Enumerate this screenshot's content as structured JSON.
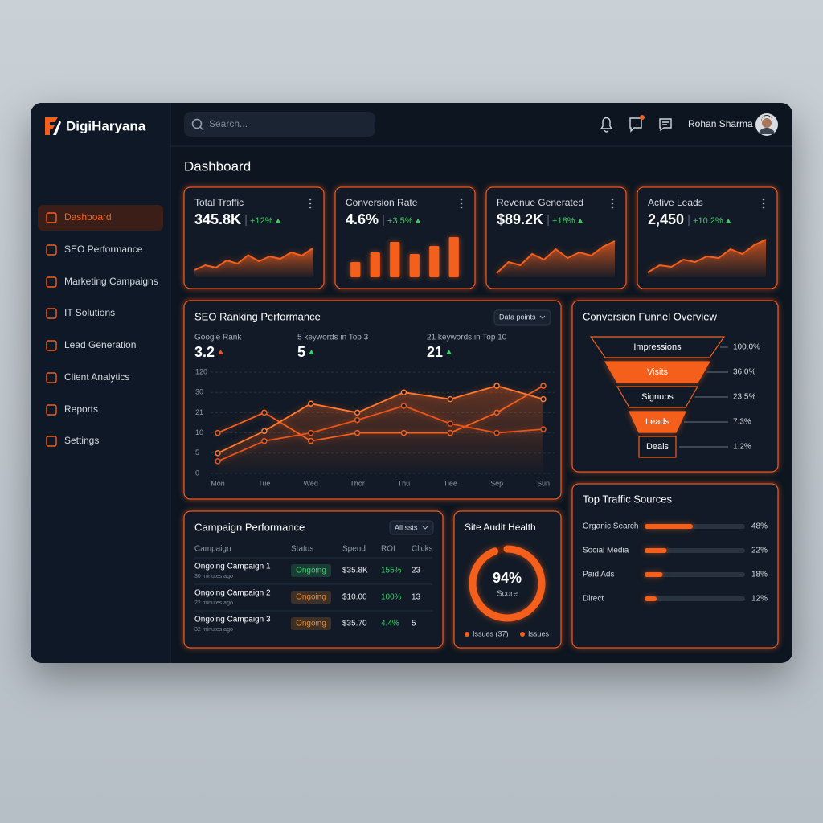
{
  "brand": "DigiHaryana",
  "search_placeholder": "Search...",
  "user": "Rohan Sharma",
  "nav": [
    "Dashboard",
    "SEO Performance",
    "Marketing Campaigns",
    "IT Solutions",
    "Lead Generation",
    "Client Analytics",
    "Reports",
    "Settings"
  ],
  "page_title": "Dashboard",
  "kpis": [
    {
      "label": "Total Traffic",
      "value": "345.8K",
      "change": "+12%",
      "trend_type": "area",
      "trend": [
        18,
        30,
        24,
        42,
        34,
        55,
        40,
        52,
        46,
        62,
        54,
        72
      ]
    },
    {
      "label": "Conversion Rate",
      "value": "4.6%",
      "change": "+3.5%",
      "trend_type": "bar",
      "trend": [
        38,
        62,
        88,
        58,
        78,
        100
      ]
    },
    {
      "label": "Revenue Generated",
      "value": "$89.2K",
      "change": "+18%",
      "trend_type": "area",
      "trend": [
        10,
        38,
        30,
        58,
        44,
        70,
        48,
        62,
        54,
        76,
        90
      ]
    },
    {
      "label": "Active Leads",
      "value": "2,450",
      "change": "+10.2%",
      "trend_type": "area",
      "trend": [
        12,
        30,
        26,
        44,
        38,
        52,
        48,
        70,
        58,
        80,
        94
      ]
    }
  ],
  "seo": {
    "title": "SEO Ranking Performance",
    "button": "Data points",
    "stats": [
      {
        "label": "Google Rank",
        "value": 3.2,
        "arrow_color": "#f0582a"
      },
      {
        "label": "5 keywords in Top 3",
        "value": 5,
        "arrow_color": "#3ecf6e"
      },
      {
        "label": "21 keywords in Top 10",
        "value": 21,
        "arrow_color": "#3ecf6e"
      }
    ],
    "categories": [
      "Mon",
      "Tue",
      "Wed",
      "Thor",
      "Thu",
      "Tiee",
      "Sep",
      "Sun"
    ],
    "yticks": [
      0,
      5,
      10,
      21,
      30,
      120
    ],
    "grid": true,
    "series": [
      {
        "color": "#f4601c",
        "values": [
          10,
          21,
          8,
          10,
          10,
          10,
          21,
          59
        ]
      },
      {
        "color": "#ff7a2e",
        "values": [
          5,
          11,
          25,
          21,
          30,
          27,
          59,
          27
        ]
      },
      {
        "color": "#e9541a",
        "values": [
          3,
          8,
          10,
          17,
          24,
          15,
          10,
          12
        ]
      }
    ]
  },
  "funnel": {
    "title": "Conversion Funnel Overview",
    "stages": [
      {
        "label": "Impressions",
        "value": 100,
        "value_label": "100.0%"
      },
      {
        "label": "Visits",
        "value": 36,
        "value_label": "36.0%"
      },
      {
        "label": "Signups",
        "value": 23.5,
        "value_label": "23.5%"
      },
      {
        "label": "Leads",
        "value": 7.3,
        "value_label": "7.3%"
      },
      {
        "label": "Deals",
        "value": 1.2,
        "value_label": "1.2%"
      }
    ]
  },
  "traffic": {
    "title": "Top Traffic Sources",
    "color": "#f4601c",
    "sources": [
      {
        "label": "Organic Search",
        "value": 48,
        "value_label": "48%"
      },
      {
        "label": "Social Media",
        "value": 22,
        "value_label": "22%"
      },
      {
        "label": "Paid Ads",
        "value": 18,
        "value_label": "18%"
      },
      {
        "label": "Direct",
        "value": 12,
        "value_label": "12%"
      }
    ]
  },
  "campaigns": {
    "title": "Campaign Performance",
    "button": "All ssts",
    "headers": [
      "Campaign",
      "Status",
      "Spend",
      "ROI",
      "Clicks"
    ],
    "rows": [
      {
        "name": "Ongoing Campaign 1",
        "time": "30 minutes ago",
        "status": "Ongoing",
        "status_color": "#3ecf6e",
        "spend": "$35.8K",
        "roi": "155%",
        "clicks": 23
      },
      {
        "name": "Ongoing Campaign 2",
        "time": "22 minutes ago",
        "status": "Ongoing",
        "status_color": "#f08a2a",
        "spend": "$10.00",
        "roi": "100%",
        "clicks": 13
      },
      {
        "name": "Ongoing Campaign 3",
        "time": "32 minutes ago",
        "status": "Ongoing",
        "status_color": "#f08a2a",
        "spend": "$35.70",
        "roi": "4.4%",
        "clicks": 5
      }
    ]
  },
  "audit": {
    "title": "Site Audit Health",
    "score": {
      "value": 94,
      "label": "94%"
    },
    "score_caption": "Score",
    "legend": [
      "Issues (37)",
      "Issues"
    ]
  }
}
